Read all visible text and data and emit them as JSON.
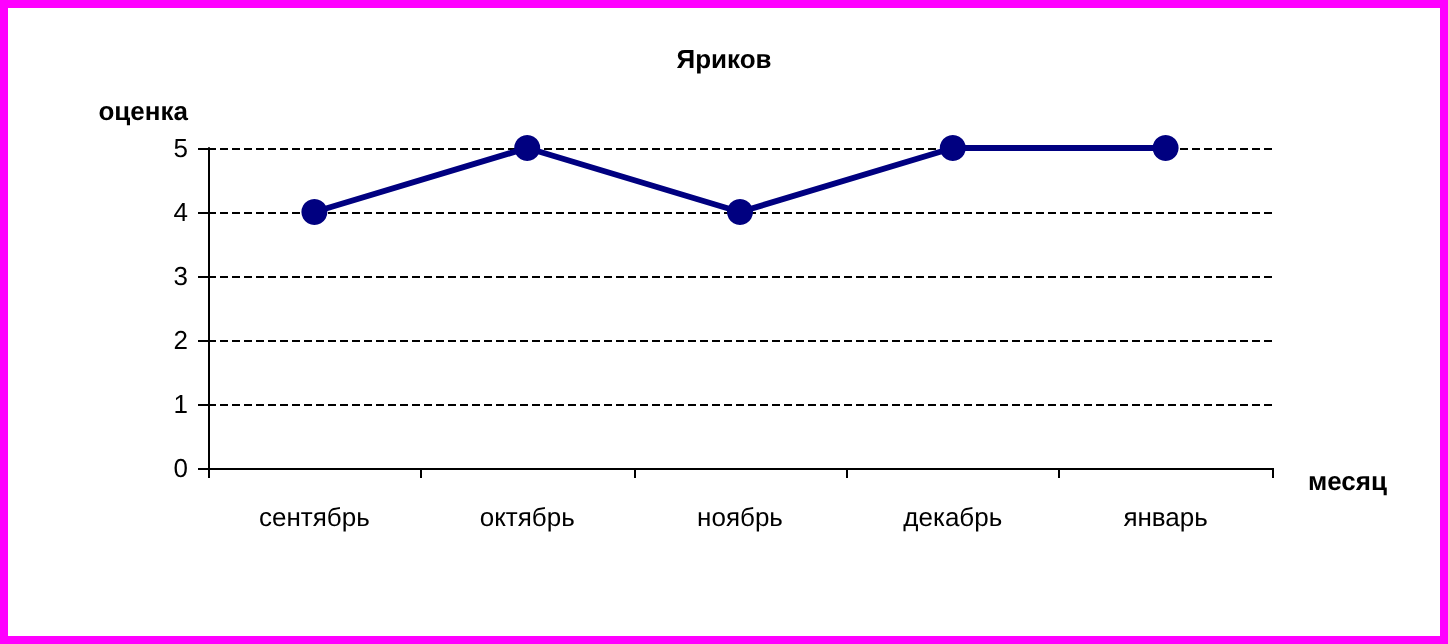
{
  "chart_data": {
    "type": "line",
    "title": "Яриков",
    "xlabel": "месяц",
    "ylabel": "оценка",
    "categories": [
      "сентябрь",
      "октябрь",
      "ноябрь",
      "декабрь",
      "январь"
    ],
    "series": [
      {
        "color": "#000080",
        "values": [
          4,
          5,
          4,
          5,
          5
        ]
      }
    ],
    "ylim": [
      0,
      5
    ],
    "yticks": [
      0,
      1,
      2,
      3,
      4,
      5
    ],
    "grid": "y",
    "marker": "circle",
    "line_style": "solid"
  }
}
